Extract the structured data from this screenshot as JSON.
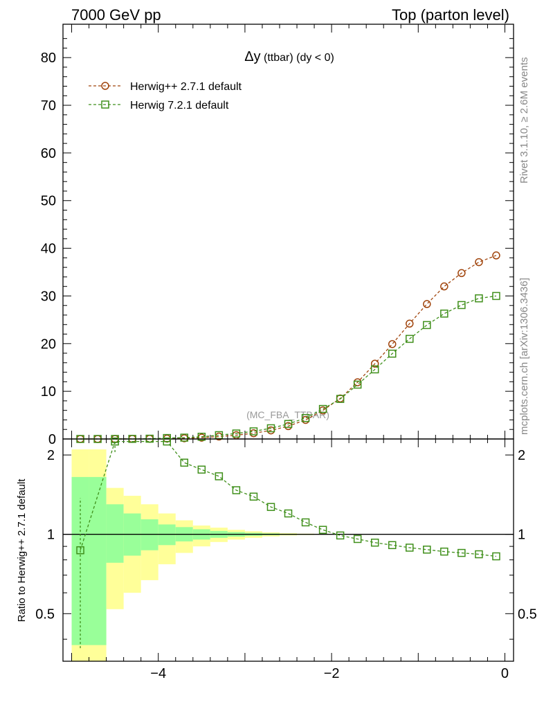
{
  "header": {
    "left": "7000 GeV pp",
    "right": "Top (parton level)"
  },
  "side_labels": {
    "rivet": "Rivet 3.1.10, ≥ 2.6M events",
    "mcplots": "mcplots.cern.ch [arXiv:1306.3436]"
  },
  "watermark": "(MC_FBA_TTBAR)",
  "chart_data": [
    {
      "type": "line",
      "panel": "main",
      "title_main": "Δy",
      "title_rest": " (ttbar)  (dy < 0)",
      "ylim": [
        0,
        87
      ],
      "xlim": [
        -5.1,
        0.1
      ],
      "yticks": [
        0,
        10,
        20,
        30,
        40,
        50,
        60,
        70,
        80
      ],
      "grid": false,
      "legend_position": "top-left",
      "x": [
        -4.9,
        -4.7,
        -4.5,
        -4.3,
        -4.1,
        -3.9,
        -3.7,
        -3.5,
        -3.3,
        -3.1,
        -2.9,
        -2.7,
        -2.5,
        -2.3,
        -2.1,
        -1.9,
        -1.7,
        -1.5,
        -1.3,
        -1.1,
        -0.9,
        -0.7,
        -0.5,
        -0.3,
        -0.1
      ],
      "series": [
        {
          "name": "Herwig++ 2.7.1 default",
          "color": "#a0440c",
          "marker": "circle",
          "values": [
            0.0,
            0.0,
            0.0,
            0.02,
            0.04,
            0.08,
            0.15,
            0.28,
            0.5,
            0.8,
            1.2,
            1.8,
            2.7,
            4.0,
            6.0,
            8.5,
            11.9,
            15.8,
            19.9,
            24.2,
            28.3,
            32.0,
            34.8,
            37.1,
            38.5
          ]
        },
        {
          "name": "Herwig 7.2.1 default",
          "color": "#3f8f1a",
          "marker": "square",
          "values": [
            0.0,
            0.0,
            0.0,
            0.02,
            0.06,
            0.2,
            0.28,
            0.47,
            0.8,
            1.15,
            1.6,
            2.25,
            3.15,
            4.4,
            6.3,
            8.4,
            11.4,
            14.6,
            17.9,
            21.0,
            23.9,
            26.3,
            28.1,
            29.5,
            30.0
          ]
        }
      ]
    },
    {
      "type": "line",
      "panel": "ratio",
      "ylabel": "Ratio to Herwig++ 2.7.1 default",
      "ylim": [
        0.33,
        2.3
      ],
      "xlim": [
        -5.1,
        0.1
      ],
      "xticks": [
        -4,
        -2,
        0
      ],
      "yticks": [
        0.5,
        1,
        2
      ],
      "reference_line": 1,
      "bands": {
        "x_edges": [
          -5.0,
          -4.8,
          -4.6,
          -4.4,
          -4.2,
          -4.0,
          -3.8,
          -3.6,
          -3.4,
          -3.2,
          -3.0,
          -2.8,
          -2.6,
          -2.4,
          -2.2,
          -2.0
        ],
        "inner_upper": [
          1.65,
          1.65,
          1.3,
          1.2,
          1.14,
          1.09,
          1.065,
          1.045,
          1.03,
          1.02,
          1.013,
          1.008,
          1.005,
          1.003,
          1.002
        ],
        "inner_lower": [
          0.38,
          0.38,
          0.78,
          0.83,
          0.87,
          0.91,
          0.94,
          0.955,
          0.97,
          0.98,
          0.987,
          0.992,
          0.995,
          0.997,
          0.998
        ],
        "outer_upper": [
          2.1,
          2.1,
          1.5,
          1.4,
          1.3,
          1.2,
          1.13,
          1.08,
          1.06,
          1.04,
          1.027,
          1.017,
          1.01,
          1.006,
          1.004
        ],
        "outer_lower": [
          0.3,
          0.3,
          0.52,
          0.6,
          0.67,
          0.77,
          0.85,
          0.9,
          0.935,
          0.955,
          0.97,
          0.982,
          0.99,
          0.994,
          0.996
        ],
        "inner_color": "#99ff99",
        "outer_color": "#ffff99"
      },
      "series": [
        {
          "name": "Herwig 7.2.1 default",
          "color": "#3f8f1a",
          "marker": "square",
          "x": [
            -4.9,
            -4.5,
            -3.9,
            -3.7,
            -3.5,
            -3.3,
            -3.1,
            -2.9,
            -2.7,
            -2.5,
            -2.3,
            -2.1,
            -1.9,
            -1.7,
            -1.5,
            -1.3,
            -1.1,
            -0.9,
            -0.7,
            -0.5,
            -0.3,
            -0.1
          ],
          "values": [
            0.87,
            2.25,
            2.25,
            1.87,
            1.76,
            1.66,
            1.47,
            1.39,
            1.27,
            1.2,
            1.11,
            1.04,
            0.99,
            0.96,
            0.93,
            0.91,
            0.89,
            0.875,
            0.86,
            0.85,
            0.84,
            0.825
          ],
          "yerr_low": [
            0.5,
            0.2,
            0,
            0,
            0,
            0,
            0,
            0,
            0,
            0,
            0,
            0,
            0,
            0,
            0,
            0,
            0,
            0,
            0,
            0,
            0,
            0
          ],
          "yerr_high": [
            0.5,
            0.2,
            0,
            0,
            0,
            0,
            0,
            0,
            0,
            0,
            0,
            0,
            0,
            0,
            0,
            0,
            0,
            0,
            0,
            0,
            0,
            0
          ]
        }
      ]
    }
  ]
}
